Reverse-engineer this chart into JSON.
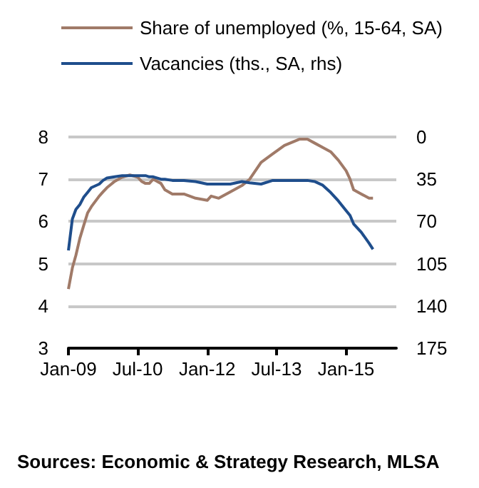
{
  "chart_data": {
    "type": "line",
    "x": [
      "2009-01",
      "2009-02",
      "2009-03",
      "2009-04",
      "2009-05",
      "2009-06",
      "2009-07",
      "2009-09",
      "2009-10",
      "2009-11",
      "2010-01",
      "2010-03",
      "2010-05",
      "2010-07",
      "2010-08",
      "2010-09",
      "2010-10",
      "2010-11",
      "2011-01",
      "2011-02",
      "2011-04",
      "2011-07",
      "2011-10",
      "2012-01",
      "2012-02",
      "2012-04",
      "2012-07",
      "2012-10",
      "2012-12",
      "2013-03",
      "2013-06",
      "2013-09",
      "2014-01",
      "2014-03",
      "2014-05",
      "2014-07",
      "2014-09",
      "2014-11",
      "2015-01",
      "2015-02",
      "2015-03",
      "2015-05",
      "2015-07",
      "2015-08"
    ],
    "series": [
      {
        "name": "Share of unemployed (%, 15-64, SA)",
        "color": "#a07a68",
        "values": [
          4.4,
          4.9,
          5.2,
          5.6,
          5.9,
          6.2,
          6.35,
          6.6,
          6.7,
          6.8,
          6.95,
          7.05,
          7.1,
          7.05,
          6.95,
          6.9,
          6.9,
          7.0,
          6.9,
          6.75,
          6.65,
          6.65,
          6.55,
          6.5,
          6.6,
          6.55,
          6.7,
          6.85,
          7.0,
          7.4,
          7.6,
          7.8,
          7.95,
          7.95,
          7.85,
          7.75,
          7.65,
          7.45,
          7.2,
          7.0,
          6.75,
          6.65,
          6.55,
          6.55
        ]
      },
      {
        "name": "Vacancies (ths., SA, rhs)",
        "color": "#1f4e8c",
        "axis": "y2",
        "values": [
          94,
          68,
          60,
          56,
          50,
          46,
          42,
          39,
          36,
          34,
          33,
          32,
          32,
          32,
          32,
          32,
          33,
          33,
          35,
          35,
          36,
          36,
          37,
          39,
          39,
          39,
          39,
          37,
          38,
          39,
          36,
          36,
          36,
          36,
          37,
          40,
          46,
          53,
          61,
          65,
          72,
          79,
          88,
          93
        ]
      }
    ],
    "xlim": [
      "2009-01",
      "2016-02"
    ],
    "xticks": [
      {
        "value": "2009-01",
        "label": "Jan-09"
      },
      {
        "value": "2010-07",
        "label": "Jul-10"
      },
      {
        "value": "2012-01",
        "label": "Jan-12"
      },
      {
        "value": "2013-07",
        "label": "Jul-13"
      },
      {
        "value": "2015-01",
        "label": "Jan-15"
      }
    ],
    "ylim": [
      3,
      8
    ],
    "yticks": [
      3,
      4,
      5,
      6,
      7,
      8
    ],
    "y2lim": [
      175,
      0
    ],
    "y2ticks": [
      0,
      35,
      70,
      105,
      140,
      175
    ],
    "grid": "y",
    "legend": "top",
    "marker": "none",
    "line_style": "solid",
    "annotations": [
      "Sources: Economic & Strategy Research, MLSA"
    ]
  }
}
